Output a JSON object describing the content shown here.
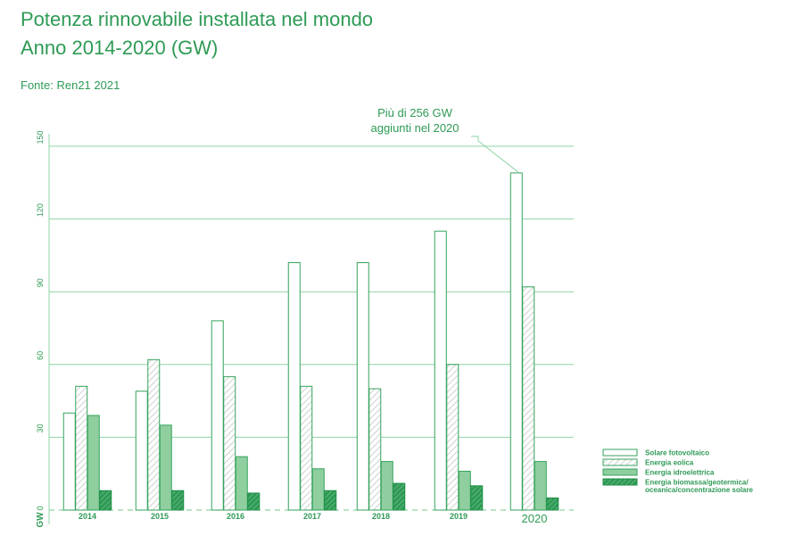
{
  "title_line1": "Potenza rinnovabile installata nel mondo",
  "title_line2": "Anno 2014-2020 (GW)",
  "source": "Fonte: Ren21 2021",
  "colors": {
    "text": "#2e9a55",
    "grid": "#8fd4a4",
    "bar_stroke": "#34a35c",
    "hydro_fill": "#8fce9f",
    "biomass_fill": "#1f8f47",
    "wind_hatch": "#bfc6c2"
  },
  "chart_data": {
    "type": "bar",
    "title": "Potenza rinnovabile installata nel mondo Anno 2014-2020 (GW)",
    "ylabel": "GW",
    "ylim": [
      0,
      150
    ],
    "yticks": [
      "0",
      "30",
      "60",
      "90",
      "120",
      "150"
    ],
    "categories": [
      "2014",
      "2015",
      "2016",
      "2017",
      "2018",
      "2019",
      "2020"
    ],
    "series": [
      {
        "name": "Solare fotovoltaico",
        "style": "outline",
        "values": [
          40,
          49,
          78,
          102,
          102,
          115,
          139
        ]
      },
      {
        "name": "Energia eolica",
        "style": "hatched",
        "values": [
          51,
          62,
          55,
          51,
          50,
          60,
          92
        ]
      },
      {
        "name": "Energia idroelettrica",
        "style": "light-fill",
        "values": [
          39,
          35,
          22,
          17,
          20,
          16,
          20
        ]
      },
      {
        "name": "Energia biomassa/geotermica/ oceanica/concentrazione solare",
        "style": "dark-hatch",
        "values": [
          8,
          8,
          7,
          8,
          11,
          10,
          5
        ]
      }
    ],
    "legend_placement": "right",
    "legend": [
      "Solare fotovoltaico",
      "Energia eolica",
      "Energia idroelettrica",
      "Energia biomassa/geotermica/",
      "oceanica/concentrazione solare"
    ],
    "annotation": {
      "text_line1": "Più di 256 GW",
      "text_line2": "aggiunti nel 2020",
      "category": "2020"
    },
    "grid": true
  }
}
